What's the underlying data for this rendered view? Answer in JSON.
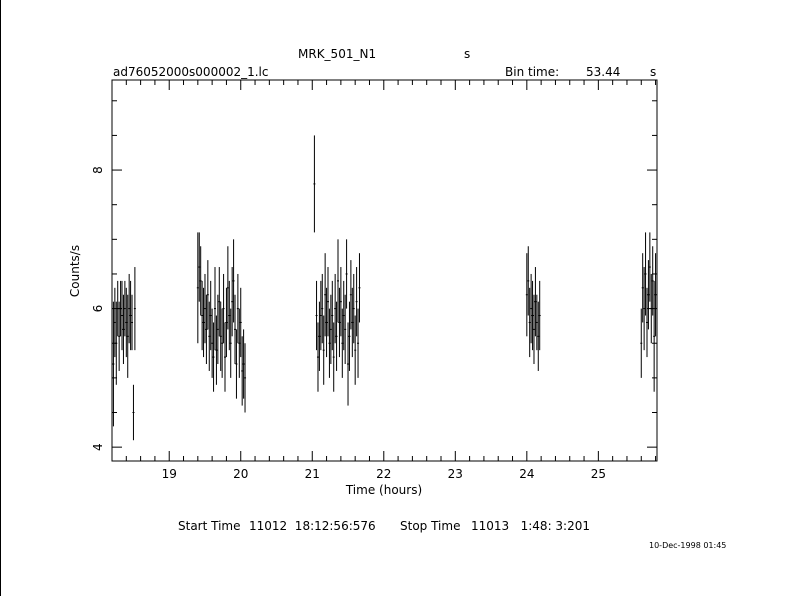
{
  "header": {
    "object": "MRK_501_N1",
    "object_unit": "s",
    "file": "ad76052000s000002_1.lc",
    "bin_time_label": "Bin time:",
    "bin_time_value": "53.44",
    "bin_time_unit": "s"
  },
  "footer": {
    "start_label": "Start Time",
    "start_value": "11012  18:12:56:576",
    "stop_label": "Stop Time",
    "stop_value": "11013   1:48: 3:201",
    "timestamp": "10-Dec-1998 01:45"
  },
  "chart_data": {
    "type": "scatter",
    "title": "MRK_501_N1",
    "xlabel": "Time (hours)",
    "ylabel": "Counts/s",
    "xlim": [
      18.2,
      25.82
    ],
    "ylim": [
      3.8,
      9.3
    ],
    "xticks": [
      19,
      20,
      21,
      22,
      23,
      24,
      25
    ],
    "yticks": [
      4,
      6,
      8
    ],
    "grid": false,
    "series": [
      {
        "x": [
          18.22,
          18.24,
          18.26,
          18.28,
          18.3,
          18.32,
          18.34,
          18.36,
          18.38,
          18.4,
          18.42,
          18.44,
          18.46,
          18.48,
          18.5,
          18.52,
          19.4,
          19.42,
          19.44,
          19.46,
          19.48,
          19.5,
          19.52,
          19.54,
          19.56,
          19.58,
          19.6,
          19.62,
          19.64,
          19.66,
          19.68,
          19.7,
          19.72,
          19.74,
          19.76,
          19.78,
          19.8,
          19.82,
          19.84,
          19.86,
          19.88,
          19.9,
          19.92,
          19.94,
          19.96,
          19.98,
          20.0,
          20.02,
          20.04,
          20.06,
          21.03,
          21.06,
          21.08,
          21.1,
          21.12,
          21.14,
          21.16,
          21.18,
          21.2,
          21.22,
          21.24,
          21.26,
          21.28,
          21.3,
          21.32,
          21.34,
          21.36,
          21.38,
          21.4,
          21.42,
          21.44,
          21.46,
          21.48,
          21.5,
          21.52,
          21.54,
          21.56,
          21.58,
          21.6,
          21.62,
          21.64,
          21.66,
          24.0,
          24.02,
          24.04,
          24.06,
          24.08,
          24.1,
          24.12,
          24.14,
          24.16,
          24.18,
          25.6,
          25.62,
          25.64,
          25.66,
          25.68,
          25.7,
          25.72,
          25.74,
          25.76,
          25.78,
          25.8
        ],
        "y": [
          5.2,
          5.8,
          5.5,
          6.0,
          5.6,
          6.0,
          5.9,
          5.7,
          6.0,
          5.8,
          5.6,
          6.0,
          5.9,
          5.8,
          4.5,
          6.0,
          6.3,
          6.6,
          6.4,
          5.9,
          5.8,
          6.0,
          5.7,
          6.2,
          5.6,
          5.9,
          5.5,
          5.3,
          6.0,
          5.4,
          5.7,
          6.1,
          5.6,
          5.5,
          6.0,
          5.3,
          5.8,
          6.3,
          5.9,
          5.5,
          6.1,
          6.4,
          5.7,
          5.2,
          6.0,
          5.5,
          5.8,
          5.1,
          5.2,
          5.0,
          7.8,
          5.9,
          5.3,
          5.6,
          5.9,
          6.0,
          5.4,
          6.2,
          5.8,
          6.1,
          5.5,
          5.7,
          5.9,
          5.3,
          6.0,
          5.6,
          6.4,
          5.8,
          6.1,
          5.5,
          5.9,
          5.7,
          6.5,
          5.2,
          5.6,
          6.2,
          5.8,
          6.0,
          5.4,
          6.1,
          5.5,
          6.3,
          6.2,
          6.4,
          5.8,
          6.0,
          5.9,
          5.7,
          6.1,
          5.8,
          5.6,
          5.9,
          5.5,
          6.3,
          6.0,
          6.5,
          5.8,
          6.2,
          6.6,
          6.0,
          6.4,
          5.6,
          6.2
        ],
        "err": [
          0.9,
          0.5,
          0.6,
          0.4,
          0.5,
          0.4,
          0.5,
          0.5,
          0.4,
          0.5,
          0.6,
          0.5,
          0.5,
          0.4,
          0.4,
          0.6,
          0.8,
          0.5,
          0.5,
          0.5,
          0.5,
          0.5,
          0.5,
          0.5,
          0.5,
          0.5,
          0.5,
          0.5,
          0.6,
          0.5,
          0.5,
          0.5,
          0.5,
          0.5,
          0.5,
          0.5,
          0.5,
          0.6,
          0.5,
          0.5,
          0.5,
          0.6,
          0.5,
          0.5,
          0.5,
          0.5,
          0.5,
          0.5,
          0.5,
          0.5,
          0.7,
          0.5,
          0.5,
          0.5,
          0.5,
          0.5,
          0.5,
          0.6,
          0.5,
          0.5,
          0.5,
          0.5,
          0.5,
          0.5,
          0.5,
          0.5,
          0.6,
          0.5,
          0.5,
          0.5,
          0.5,
          0.5,
          0.5,
          0.6,
          0.5,
          0.5,
          0.5,
          0.5,
          0.5,
          0.5,
          0.5,
          0.5,
          0.6,
          0.5,
          0.5,
          0.5,
          0.5,
          0.5,
          0.5,
          0.4,
          0.5,
          0.5,
          0.5,
          0.5,
          0.6,
          0.6,
          0.5,
          0.5,
          0.5,
          0.5,
          0.5,
          0.8,
          0.6
        ]
      }
    ]
  }
}
